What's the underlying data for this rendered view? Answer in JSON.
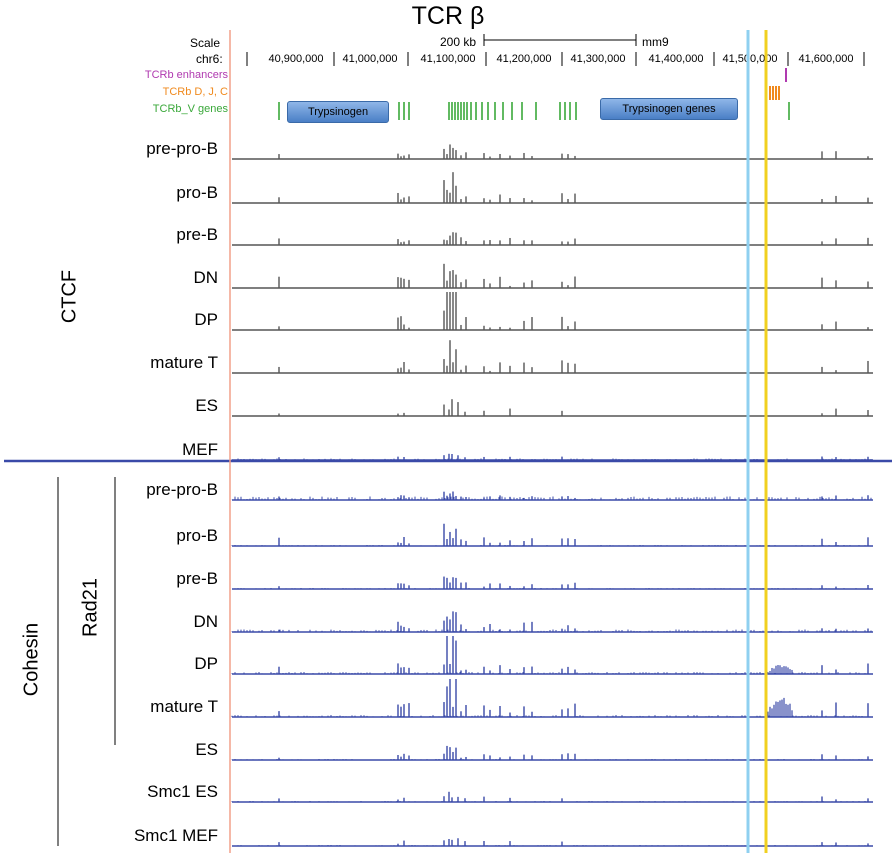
{
  "title": "TCR β",
  "header": {
    "scale_label": "Scale",
    "chrom_label": "chr6:",
    "scale_bar_label": "200 kb",
    "assembly": "mm9",
    "ticks": [
      "40,900,000",
      "41,000,000",
      "41,100,000",
      "41,200,000",
      "41,300,000",
      "41,400,000",
      "41,500,000",
      "41,600,000"
    ]
  },
  "annotation_tracks": [
    {
      "label": "TCRb enhancers",
      "color": "#b03ab0"
    },
    {
      "label": "TCRb D, J, C",
      "color": "#f08a1e"
    },
    {
      "label": "TCRb_V genes",
      "color": "#3aa83a"
    }
  ],
  "gene_boxes": [
    "Trypsinogen",
    "Trypsinogen genes"
  ],
  "groups": {
    "ctcf": "CTCF",
    "cohesin": "Cohesin",
    "rad21": "Rad21"
  },
  "ctcf_tracks": [
    "pre-pro-B",
    "pro-B",
    "pre-B",
    "DN",
    "DP",
    "mature T",
    "ES",
    "MEF"
  ],
  "rad21_tracks": [
    "pre-pro-B",
    "pro-B",
    "pre-B",
    "DN",
    "DP",
    "mature T",
    "ES"
  ],
  "smc1_tracks": [
    "Smc1  ES",
    "Smc1  MEF"
  ],
  "colors": {
    "ctcf_signal": "#555555",
    "cohesin_signal": "#3a4aa8",
    "divider": "#3a4aa8",
    "left_line": "#f2a08a",
    "cyan_line": "#8fd0f0",
    "yellow_line": "#f0d020"
  }
}
